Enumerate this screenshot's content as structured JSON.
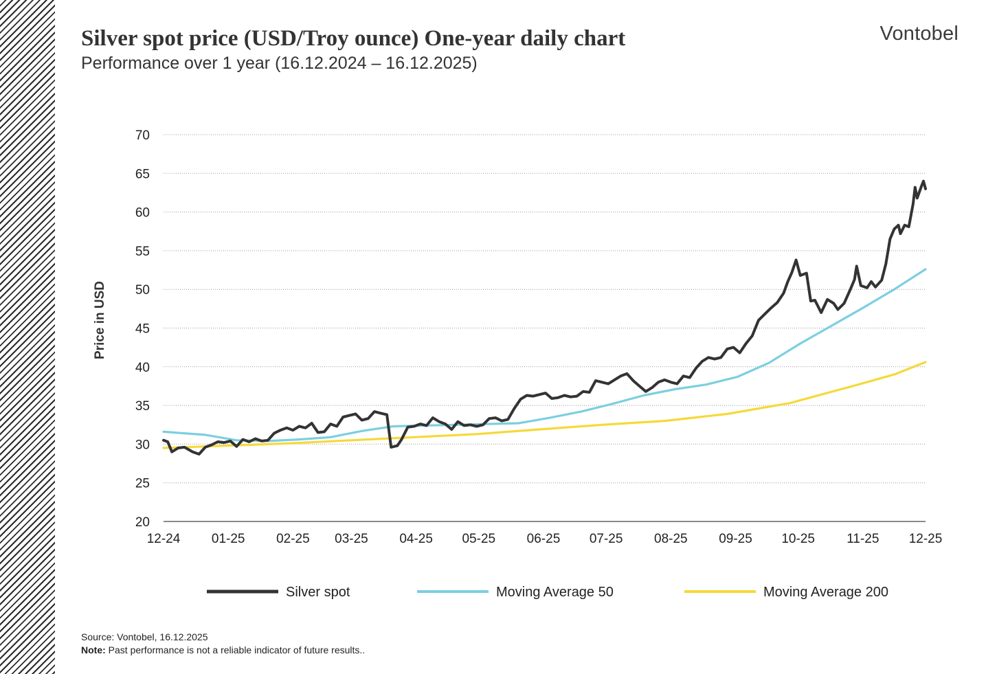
{
  "header": {
    "title": "Silver spot price (USD/Troy ounce) One-year daily chart",
    "subtitle": "Performance over 1 year (16.12.2024 – 16.12.2025)",
    "brand": "Vontobel"
  },
  "footer": {
    "source": "Source: Vontobel, 16.12.2025",
    "note_label": "Note:",
    "note_text": " Past performance is not a reliable indicator of future results.."
  },
  "colors": {
    "silver": "#333333",
    "ma50": "#7ccfdf",
    "ma200": "#f5d93a",
    "grid": "#999999"
  },
  "chart_data": {
    "type": "line",
    "title": "Silver spot price (USD/Troy ounce) One-year daily chart",
    "subtitle": "Performance over 1 year (16.12.2024 – 16.12.2025)",
    "xlabel": "",
    "ylabel": "Price in USD",
    "ylim": [
      20,
      70
    ],
    "yticks": [
      20,
      25,
      30,
      35,
      40,
      45,
      50,
      55,
      60,
      65,
      70
    ],
    "xlim": [
      "2024-12-16",
      "2025-12-16"
    ],
    "xticks": [
      {
        "label": "12-24",
        "date": "2024-12-16"
      },
      {
        "label": "01-25",
        "date": "2025-01-16"
      },
      {
        "label": "02-25",
        "date": "2025-02-16"
      },
      {
        "label": "03-25",
        "date": "2025-03-16"
      },
      {
        "label": "04-25",
        "date": "2025-04-16"
      },
      {
        "label": "05-25",
        "date": "2025-05-16"
      },
      {
        "label": "06-25",
        "date": "2025-06-16"
      },
      {
        "label": "07-25",
        "date": "2025-07-16"
      },
      {
        "label": "08-25",
        "date": "2025-08-16"
      },
      {
        "label": "09-25",
        "date": "2025-09-16"
      },
      {
        "label": "10-25",
        "date": "2025-10-16"
      },
      {
        "label": "11-25",
        "date": "2025-11-16"
      },
      {
        "label": "12-25",
        "date": "2025-12-16"
      }
    ],
    "grid": "horizontal dotted",
    "legend_position": "bottom",
    "series": [
      {
        "name": "Silver spot",
        "color": "#333333",
        "points": [
          [
            "2024-12-16",
            30.5
          ],
          [
            "2024-12-18",
            30.3
          ],
          [
            "2024-12-20",
            29.0
          ],
          [
            "2024-12-23",
            29.5
          ],
          [
            "2024-12-26",
            29.6
          ],
          [
            "2024-12-30",
            29.0
          ],
          [
            "2025-01-02",
            28.7
          ],
          [
            "2025-01-05",
            29.6
          ],
          [
            "2025-01-08",
            29.9
          ],
          [
            "2025-01-11",
            30.3
          ],
          [
            "2025-01-14",
            30.2
          ],
          [
            "2025-01-17",
            30.4
          ],
          [
            "2025-01-20",
            29.7
          ],
          [
            "2025-01-23",
            30.6
          ],
          [
            "2025-01-26",
            30.3
          ],
          [
            "2025-01-29",
            30.7
          ],
          [
            "2025-02-01",
            30.4
          ],
          [
            "2025-02-04",
            30.5
          ],
          [
            "2025-02-07",
            31.4
          ],
          [
            "2025-02-10",
            31.8
          ],
          [
            "2025-02-13",
            32.1
          ],
          [
            "2025-02-16",
            31.8
          ],
          [
            "2025-02-19",
            32.3
          ],
          [
            "2025-02-22",
            32.1
          ],
          [
            "2025-02-25",
            32.7
          ],
          [
            "2025-02-28",
            31.5
          ],
          [
            "2025-03-03",
            31.6
          ],
          [
            "2025-03-06",
            32.6
          ],
          [
            "2025-03-09",
            32.3
          ],
          [
            "2025-03-12",
            33.5
          ],
          [
            "2025-03-15",
            33.7
          ],
          [
            "2025-03-18",
            33.9
          ],
          [
            "2025-03-21",
            33.1
          ],
          [
            "2025-03-24",
            33.3
          ],
          [
            "2025-03-27",
            34.2
          ],
          [
            "2025-03-30",
            34.0
          ],
          [
            "2025-04-02",
            33.8
          ],
          [
            "2025-04-04",
            29.6
          ],
          [
            "2025-04-07",
            29.8
          ],
          [
            "2025-04-09",
            30.6
          ],
          [
            "2025-04-12",
            32.2
          ],
          [
            "2025-04-15",
            32.3
          ],
          [
            "2025-04-18",
            32.6
          ],
          [
            "2025-04-21",
            32.4
          ],
          [
            "2025-04-24",
            33.4
          ],
          [
            "2025-04-27",
            32.9
          ],
          [
            "2025-04-30",
            32.6
          ],
          [
            "2025-05-03",
            31.9
          ],
          [
            "2025-05-06",
            32.9
          ],
          [
            "2025-05-09",
            32.4
          ],
          [
            "2025-05-12",
            32.5
          ],
          [
            "2025-05-15",
            32.3
          ],
          [
            "2025-05-18",
            32.5
          ],
          [
            "2025-05-21",
            33.3
          ],
          [
            "2025-05-24",
            33.4
          ],
          [
            "2025-05-27",
            33.0
          ],
          [
            "2025-05-30",
            33.2
          ],
          [
            "2025-06-02",
            34.6
          ],
          [
            "2025-06-05",
            35.8
          ],
          [
            "2025-06-08",
            36.3
          ],
          [
            "2025-06-11",
            36.2
          ],
          [
            "2025-06-14",
            36.4
          ],
          [
            "2025-06-17",
            36.6
          ],
          [
            "2025-06-20",
            35.9
          ],
          [
            "2025-06-23",
            36.0
          ],
          [
            "2025-06-26",
            36.3
          ],
          [
            "2025-06-29",
            36.1
          ],
          [
            "2025-07-02",
            36.2
          ],
          [
            "2025-07-05",
            36.8
          ],
          [
            "2025-07-08",
            36.7
          ],
          [
            "2025-07-11",
            38.2
          ],
          [
            "2025-07-14",
            38.0
          ],
          [
            "2025-07-17",
            37.8
          ],
          [
            "2025-07-20",
            38.3
          ],
          [
            "2025-07-23",
            38.8
          ],
          [
            "2025-07-26",
            39.1
          ],
          [
            "2025-07-29",
            38.2
          ],
          [
            "2025-08-01",
            37.5
          ],
          [
            "2025-08-04",
            36.8
          ],
          [
            "2025-08-07",
            37.3
          ],
          [
            "2025-08-10",
            38.0
          ],
          [
            "2025-08-13",
            38.3
          ],
          [
            "2025-08-16",
            38.0
          ],
          [
            "2025-08-19",
            37.8
          ],
          [
            "2025-08-22",
            38.8
          ],
          [
            "2025-08-25",
            38.6
          ],
          [
            "2025-08-28",
            39.8
          ],
          [
            "2025-08-31",
            40.7
          ],
          [
            "2025-09-03",
            41.2
          ],
          [
            "2025-09-06",
            41.0
          ],
          [
            "2025-09-09",
            41.2
          ],
          [
            "2025-09-12",
            42.3
          ],
          [
            "2025-09-15",
            42.5
          ],
          [
            "2025-09-18",
            41.8
          ],
          [
            "2025-09-21",
            43.0
          ],
          [
            "2025-09-24",
            44.0
          ],
          [
            "2025-09-27",
            46.0
          ],
          [
            "2025-09-30",
            46.8
          ],
          [
            "2025-10-03",
            47.6
          ],
          [
            "2025-10-06",
            48.3
          ],
          [
            "2025-10-09",
            49.5
          ],
          [
            "2025-10-11",
            51.0
          ],
          [
            "2025-10-13",
            52.2
          ],
          [
            "2025-10-15",
            53.8
          ],
          [
            "2025-10-17",
            51.8
          ],
          [
            "2025-10-20",
            52.1
          ],
          [
            "2025-10-22",
            48.5
          ],
          [
            "2025-10-24",
            48.6
          ],
          [
            "2025-10-27",
            47.0
          ],
          [
            "2025-10-30",
            48.7
          ],
          [
            "2025-11-02",
            48.2
          ],
          [
            "2025-11-04",
            47.4
          ],
          [
            "2025-11-07",
            48.2
          ],
          [
            "2025-11-10",
            50.0
          ],
          [
            "2025-11-12",
            51.3
          ],
          [
            "2025-11-13",
            53.0
          ],
          [
            "2025-11-15",
            50.5
          ],
          [
            "2025-11-18",
            50.2
          ],
          [
            "2025-11-20",
            51.0
          ],
          [
            "2025-11-22",
            50.3
          ],
          [
            "2025-11-25",
            51.2
          ],
          [
            "2025-11-27",
            53.3
          ],
          [
            "2025-11-29",
            56.5
          ],
          [
            "2025-12-01",
            57.8
          ],
          [
            "2025-12-03",
            58.3
          ],
          [
            "2025-12-04",
            57.2
          ],
          [
            "2025-12-06",
            58.3
          ],
          [
            "2025-12-08",
            58.1
          ],
          [
            "2025-12-10",
            61.0
          ],
          [
            "2025-12-11",
            63.2
          ],
          [
            "2025-12-12",
            61.8
          ],
          [
            "2025-12-14",
            63.3
          ],
          [
            "2025-12-15",
            64.0
          ],
          [
            "2025-12-16",
            63.0
          ]
        ]
      },
      {
        "name": "Moving Average 50",
        "color": "#7ccfdf",
        "points": [
          [
            "2024-12-16",
            31.6
          ],
          [
            "2025-01-05",
            31.2
          ],
          [
            "2025-01-20",
            30.5
          ],
          [
            "2025-02-04",
            30.4
          ],
          [
            "2025-02-19",
            30.6
          ],
          [
            "2025-03-06",
            30.9
          ],
          [
            "2025-03-21",
            31.7
          ],
          [
            "2025-04-05",
            32.3
          ],
          [
            "2025-04-20",
            32.4
          ],
          [
            "2025-05-05",
            32.5
          ],
          [
            "2025-05-20",
            32.6
          ],
          [
            "2025-06-04",
            32.7
          ],
          [
            "2025-06-19",
            33.4
          ],
          [
            "2025-07-04",
            34.2
          ],
          [
            "2025-07-19",
            35.2
          ],
          [
            "2025-08-03",
            36.3
          ],
          [
            "2025-08-18",
            37.1
          ],
          [
            "2025-09-02",
            37.7
          ],
          [
            "2025-09-17",
            38.7
          ],
          [
            "2025-10-02",
            40.5
          ],
          [
            "2025-10-17",
            43.0
          ],
          [
            "2025-11-01",
            45.3
          ],
          [
            "2025-11-16",
            47.6
          ],
          [
            "2025-12-01",
            50.0
          ],
          [
            "2025-12-16",
            52.6
          ]
        ]
      },
      {
        "name": "Moving Average 200",
        "color": "#f5d93a",
        "points": [
          [
            "2024-12-16",
            29.5
          ],
          [
            "2025-01-15",
            29.8
          ],
          [
            "2025-02-14",
            30.1
          ],
          [
            "2025-03-16",
            30.5
          ],
          [
            "2025-04-15",
            30.9
          ],
          [
            "2025-05-15",
            31.3
          ],
          [
            "2025-06-14",
            31.9
          ],
          [
            "2025-07-14",
            32.5
          ],
          [
            "2025-08-13",
            33.0
          ],
          [
            "2025-09-12",
            33.9
          ],
          [
            "2025-10-12",
            35.3
          ],
          [
            "2025-11-11",
            37.5
          ],
          [
            "2025-12-01",
            39.0
          ],
          [
            "2025-12-16",
            40.6
          ]
        ]
      }
    ]
  }
}
